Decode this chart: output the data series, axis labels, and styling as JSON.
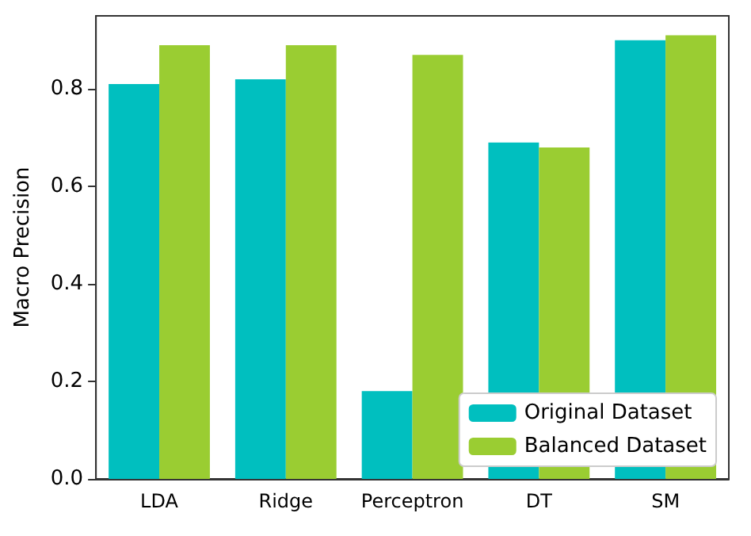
{
  "chart_data": {
    "type": "bar",
    "ylabel": "Macro Precision",
    "categories": [
      "LDA",
      "Ridge",
      "Perceptron",
      "DT",
      "SM"
    ],
    "series": [
      {
        "name": "Original Dataset",
        "color": "#00bfbf",
        "values": [
          0.81,
          0.82,
          0.18,
          0.69,
          0.9
        ]
      },
      {
        "name": "Balanced Dataset",
        "color": "#9acd32",
        "values": [
          0.89,
          0.89,
          0.87,
          0.68,
          0.91
        ]
      }
    ],
    "ylim": [
      0,
      0.95
    ],
    "yticks": [
      {
        "value": 0,
        "label": "0.0"
      },
      0.2,
      0.4,
      0.6,
      0.8
    ],
    "grid": false,
    "legend": "bottom right"
  }
}
